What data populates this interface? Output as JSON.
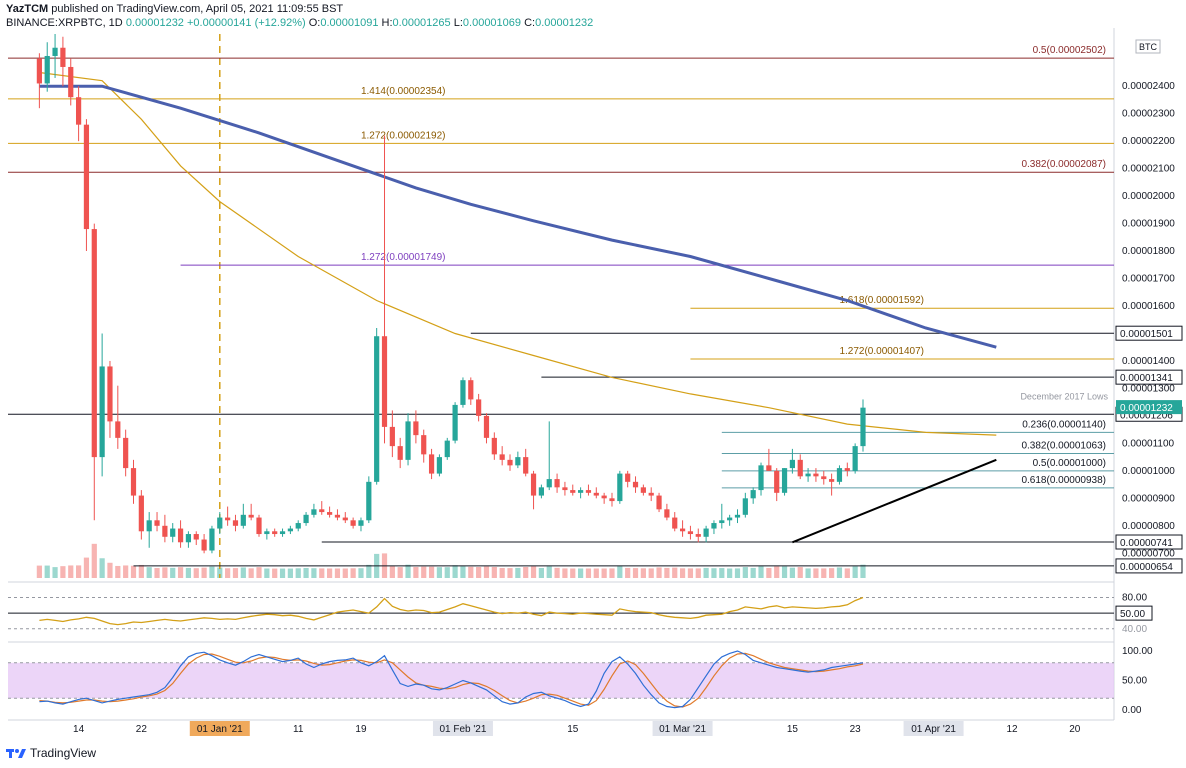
{
  "header": {
    "author": "YazTCM",
    "published_text": "published on TradingView.com, April 05, 2021 11:09:55 BST",
    "symbol": "BINANCE:XRPBTC, 1D",
    "last": "0.00001232",
    "change": "+0.00000141 (+12.92%)",
    "o_label": "O:",
    "o_value": "0.00001091",
    "h_label": "H:",
    "h_value": "0.00001265",
    "l_label": "L:",
    "l_value": "0.00001069",
    "c_label": "C:",
    "c_value": "0.00001232"
  },
  "footer": {
    "brand": "TradingView"
  },
  "colors": {
    "up": "#26a69a",
    "down": "#ef5350",
    "ma200": "#4a5fad",
    "ma100": "#d4a017",
    "fib": "#d4a017",
    "fib_red": "#8b2b2b",
    "fib_purple": "#7e3fbf",
    "teal_line": "#5c9ea6",
    "rsi": "#d4a017",
    "stoch_k": "#2f6fd6",
    "stoch_d": "#e07a2c",
    "stoch_band": "#e6c7f5"
  },
  "chart_data": {
    "type": "candlestick",
    "currency": "BTC",
    "ylim": [
      6.1e-06,
      2.59e-05
    ],
    "price_ticks": [
      "0.00002400",
      "0.00002300",
      "0.00002200",
      "0.00002100",
      "0.00002000",
      "0.00001900",
      "0.00001800",
      "0.00001700",
      "0.00001600",
      "0.00001400",
      "0.00001300",
      "0.00001100",
      "0.00001000",
      "0.00000900",
      "0.00000800",
      "0.00000700"
    ],
    "price_tick_values": [
      2.4e-05,
      2.3e-05,
      2.2e-05,
      2.1e-05,
      2e-05,
      1.9e-05,
      1.8e-05,
      1.7e-05,
      1.6e-05,
      1.4e-05,
      1.3e-05,
      1.1e-05,
      1e-05,
      9e-06,
      8e-06,
      7e-06
    ],
    "x_ticks": [
      "14",
      "22",
      "01 Jan '21",
      "11",
      "19",
      "01 Feb '21",
      "15",
      "01 Mar '21",
      "15",
      "23",
      "01 Apr '21",
      "12",
      "20"
    ],
    "x_tick_days": [
      -18,
      -10,
      0,
      10,
      18,
      31,
      45,
      59,
      73,
      81,
      91,
      101,
      109
    ],
    "highlight_x_ticks": [
      "01 Jan '21"
    ],
    "boxed_x_ticks": [
      "01 Feb '21",
      "01 Mar '21",
      "01 Apr '21"
    ],
    "candles_ohlc": [
      [
        2.5e-05,
        2.52e-05,
        2.32e-05,
        2.41e-05
      ],
      [
        2.41e-05,
        2.56e-05,
        2.38e-05,
        2.51e-05
      ],
      [
        2.51e-05,
        2.59e-05,
        2.43e-05,
        2.54e-05
      ],
      [
        2.54e-05,
        2.58e-05,
        2.4e-05,
        2.47e-05
      ],
      [
        2.47e-05,
        2.5e-05,
        2.33e-05,
        2.36e-05
      ],
      [
        2.36e-05,
        2.4e-05,
        2.2e-05,
        2.26e-05
      ],
      [
        2.26e-05,
        2.28e-05,
        1.8e-05,
        1.88e-05
      ],
      [
        1.88e-05,
        1.9e-05,
        8.2e-06,
        1.05e-05
      ],
      [
        1.05e-05,
        1.5e-05,
        9.8e-06,
        1.38e-05
      ],
      [
        1.38e-05,
        1.4e-05,
        1.12e-05,
        1.18e-05
      ],
      [
        1.18e-05,
        1.31e-05,
        1.08e-05,
        1.12e-05
      ],
      [
        1.12e-05,
        1.15e-05,
        9.8e-06,
        1.01e-05
      ],
      [
        1.01e-05,
        1.04e-05,
        8.8e-06,
        9.1e-06
      ],
      [
        9.1e-06,
        9.3e-06,
        7.5e-06,
        7.8e-06
      ],
      [
        7.8e-06,
        8.5e-06,
        7.2e-06,
        8.2e-06
      ],
      [
        8.2e-06,
        8.5e-06,
        7.8e-06,
        8e-06
      ],
      [
        8e-06,
        8.4e-06,
        7.4e-06,
        7.6e-06
      ],
      [
        7.6e-06,
        8.1e-06,
        7.4e-06,
        7.9e-06
      ],
      [
        7.9e-06,
        8.2e-06,
        7.2e-06,
        7.4e-06
      ],
      [
        7.4e-06,
        7.8e-06,
        7.2e-06,
        7.7e-06
      ],
      [
        7.7e-06,
        7.8e-06,
        7.3e-06,
        7.5e-06
      ],
      [
        7.5e-06,
        7.7e-06,
        7e-06,
        7.1e-06
      ],
      [
        7.1e-06,
        8e-06,
        7e-06,
        7.9e-06
      ],
      [
        7.9e-06,
        8.5e-06,
        7.7e-06,
        8.3e-06
      ],
      [
        8.3e-06,
        8.7e-06,
        8e-06,
        8.2e-06
      ],
      [
        8.2e-06,
        8.4e-06,
        7.8e-06,
        8e-06
      ],
      [
        8e-06,
        8.8e-06,
        7.9e-06,
        8.4e-06
      ],
      [
        8.4e-06,
        8.8e-06,
        8.2e-06,
        8.3e-06
      ],
      [
        8.3e-06,
        8.4e-06,
        7.6e-06,
        7.7e-06
      ],
      [
        7.7e-06,
        7.9e-06,
        7.5e-06,
        7.8e-06
      ],
      [
        7.8e-06,
        7.9e-06,
        7.6e-06,
        7.7e-06
      ],
      [
        7.7e-06,
        7.9e-06,
        7.6e-06,
        7.8e-06
      ],
      [
        7.8e-06,
        8e-06,
        7.7e-06,
        7.9e-06
      ],
      [
        7.9e-06,
        8.2e-06,
        7.8e-06,
        8.1e-06
      ],
      [
        8.1e-06,
        8.5e-06,
        8e-06,
        8.4e-06
      ],
      [
        8.4e-06,
        8.8e-06,
        8.3e-06,
        8.6e-06
      ],
      [
        8.6e-06,
        8.9e-06,
        8.4e-06,
        8.5e-06
      ],
      [
        8.5e-06,
        8.7e-06,
        8.3e-06,
        8.4e-06
      ],
      [
        8.4e-06,
        8.6e-06,
        8.2e-06,
        8.3e-06
      ],
      [
        8.3e-06,
        8.5e-06,
        8.1e-06,
        8.2e-06
      ],
      [
        8.2e-06,
        8.3e-06,
        7.9e-06,
        8e-06
      ],
      [
        8e-06,
        8.3e-06,
        7.8e-06,
        8.2e-06
      ],
      [
        8.2e-06,
        9.8e-06,
        8.1e-06,
        9.6e-06
      ],
      [
        9.6e-06,
        1.52e-05,
        9.5e-06,
        1.49e-05
      ],
      [
        1.49e-05,
        2.22e-05,
        1.1e-05,
        1.16e-05
      ],
      [
        1.16e-05,
        1.22e-05,
        1.05e-05,
        1.09e-05
      ],
      [
        1.09e-05,
        1.12e-05,
        1.01e-05,
        1.04e-05
      ],
      [
        1.04e-05,
        1.21e-05,
        1.02e-05,
        1.18e-05
      ],
      [
        1.18e-05,
        1.22e-05,
        1.1e-05,
        1.13e-05
      ],
      [
        1.13e-05,
        1.15e-05,
        1.03e-05,
        1.06e-05
      ],
      [
        1.06e-05,
        1.08e-05,
        9.7e-06,
        9.9e-06
      ],
      [
        9.9e-06,
        1.06e-05,
        9.8e-06,
        1.05e-05
      ],
      [
        1.05e-05,
        1.12e-05,
        1.04e-05,
        1.11e-05
      ],
      [
        1.11e-05,
        1.25e-05,
        1.1e-05,
        1.24e-05
      ],
      [
        1.24e-05,
        1.34e-05,
        1.23e-05,
        1.33e-05
      ],
      [
        1.33e-05,
        1.34e-05,
        1.24e-05,
        1.26e-05
      ],
      [
        1.26e-05,
        1.28e-05,
        1.18e-05,
        1.2e-05
      ],
      [
        1.2e-05,
        1.21e-05,
        1.1e-05,
        1.12e-05
      ],
      [
        1.12e-05,
        1.14e-05,
        1.04e-05,
        1.06e-05
      ],
      [
        1.06e-05,
        1.09e-05,
        1.02e-05,
        1.04e-05
      ],
      [
        1.04e-05,
        1.06e-05,
        1e-05,
        1.02e-05
      ],
      [
        1.02e-05,
        1.07e-05,
        1.01e-05,
        1.05e-05
      ],
      [
        1.05e-05,
        1.08e-05,
        9.8e-06,
        9.9e-06
      ],
      [
        9.9e-06,
        1e-05,
        8.6e-06,
        9.1e-06
      ],
      [
        9.1e-06,
        9.5e-06,
        9e-06,
        9.4e-06
      ],
      [
        9.4e-06,
        1.18e-05,
        9.3e-06,
        9.7e-06
      ],
      [
        9.7e-06,
        9.9e-06,
        9.2e-06,
        9.4e-06
      ],
      [
        9.4e-06,
        9.6e-06,
        9.1e-06,
        9.3e-06
      ],
      [
        9.3e-06,
        9.5e-06,
        9.1e-06,
        9.2e-06
      ],
      [
        9.2e-06,
        9.4e-06,
        9e-06,
        9.3e-06
      ],
      [
        9.3e-06,
        9.5e-06,
        9.1e-06,
        9.2e-06
      ],
      [
        9.2e-06,
        9.4e-06,
        9e-06,
        9.1e-06
      ],
      [
        9.1e-06,
        9.2e-06,
        8.8e-06,
        9e-06
      ],
      [
        9e-06,
        9.2e-06,
        8.7e-06,
        8.9e-06
      ],
      [
        8.9e-06,
        1e-05,
        8.8e-06,
        9.9e-06
      ],
      [
        9.9e-06,
        1e-05,
        9.4e-06,
        9.6e-06
      ],
      [
        9.6e-06,
        9.8e-06,
        9.2e-06,
        9.4e-06
      ],
      [
        9.4e-06,
        9.5e-06,
        9.1e-06,
        9.2e-06
      ],
      [
        9.2e-06,
        9.4e-06,
        8.9e-06,
        9.1e-06
      ],
      [
        9.1e-06,
        9.2e-06,
        8.5e-06,
        8.6e-06
      ],
      [
        8.6e-06,
        8.8e-06,
        8.2e-06,
        8.3e-06
      ],
      [
        8.3e-06,
        8.5e-06,
        7.8e-06,
        7.9e-06
      ],
      [
        7.9e-06,
        8.2e-06,
        7.6e-06,
        7.8e-06
      ],
      [
        7.8e-06,
        8e-06,
        7.5e-06,
        7.7e-06
      ],
      [
        7.7e-06,
        7.9e-06,
        7.4e-06,
        7.6e-06
      ],
      [
        7.6e-06,
        8e-06,
        7.4e-06,
        7.9e-06
      ],
      [
        7.9e-06,
        8.2e-06,
        7.7e-06,
        8.1e-06
      ],
      [
        8.1e-06,
        8.8e-06,
        7.9e-06,
        8.2e-06
      ],
      [
        8.2e-06,
        8.4e-06,
        8e-06,
        8.3e-06
      ],
      [
        8.3e-06,
        8.6e-06,
        8.1e-06,
        8.4e-06
      ],
      [
        8.4e-06,
        9.2e-06,
        8.3e-06,
        9e-06
      ],
      [
        9e-06,
        9.4e-06,
        8.8e-06,
        9.3e-06
      ],
      [
        9.3e-06,
        1.03e-05,
        9.1e-06,
        1.02e-05
      ],
      [
        1.02e-05,
        1.08e-05,
        1e-05,
        1e-05
      ],
      [
        1e-05,
        1.01e-05,
        8.9e-06,
        9.2e-06
      ],
      [
        9.2e-06,
        1.01e-05,
        9.1e-06,
        1.01e-05
      ],
      [
        1.01e-05,
        1.08e-05,
        9.9e-06,
        1.04e-05
      ],
      [
        1.04e-05,
        1.06e-05,
        9.7e-06,
        9.8e-06
      ],
      [
        9.8e-06,
        1.01e-05,
        9.6e-06,
        9.9e-06
      ],
      [
        9.9e-06,
        1.01e-05,
        9.6e-06,
        9.8e-06
      ],
      [
        9.8e-06,
        1e-05,
        9.5e-06,
        9.7e-06
      ],
      [
        9.7e-06,
        9.9e-06,
        9.1e-06,
        9.6e-06
      ],
      [
        9.6e-06,
        1.02e-05,
        9.5e-06,
        1.01e-05
      ],
      [
        1.01e-05,
        1.03e-05,
        9.8e-06,
        1e-05
      ],
      [
        1e-05,
        1.1e-05,
        9.9e-06,
        1.09e-05
      ],
      [
        1.09e-05,
        1.26e-05,
        1.07e-05,
        1.23e-05
      ]
    ],
    "first_candle_day": -23,
    "ma200": [
      [
        -23,
        2.4e-05
      ],
      [
        -15,
        2.4e-05
      ],
      [
        -5,
        2.32e-05
      ],
      [
        5,
        2.23e-05
      ],
      [
        15,
        2.13e-05
      ],
      [
        25,
        2.03e-05
      ],
      [
        32,
        1.97e-05
      ],
      [
        40,
        1.91e-05
      ],
      [
        50,
        1.84e-05
      ],
      [
        60,
        1.78e-05
      ],
      [
        70,
        1.7e-05
      ],
      [
        80,
        1.62e-05
      ],
      [
        90,
        1.52e-05
      ],
      [
        99,
        1.45e-05
      ]
    ],
    "ma100": [
      [
        -23,
        2.45e-05
      ],
      [
        -15,
        2.42e-05
      ],
      [
        -10,
        2.28e-05
      ],
      [
        -5,
        2.11e-05
      ],
      [
        0,
        1.98e-05
      ],
      [
        10,
        1.78e-05
      ],
      [
        20,
        1.62e-05
      ],
      [
        30,
        1.5e-05
      ],
      [
        40,
        1.42e-05
      ],
      [
        50,
        1.34e-05
      ],
      [
        60,
        1.28e-05
      ],
      [
        70,
        1.23e-05
      ],
      [
        80,
        1.17e-05
      ],
      [
        90,
        1.14e-05
      ],
      [
        99,
        1.13e-05
      ]
    ],
    "horizontal_levels": [
      {
        "label": "0.5(0.00002502)",
        "value": 2.502e-05,
        "kind": "fib_red"
      },
      {
        "label": "1.414(0.00002354)",
        "value": 2.354e-05,
        "kind": "fib"
      },
      {
        "label": "1.272(0.00002192)",
        "value": 2.192e-05,
        "kind": "fib"
      },
      {
        "label": "0.382(0.00002087)",
        "value": 2.087e-05,
        "kind": "fib_red"
      },
      {
        "label": "1.272(0.00001749)",
        "value": 1.749e-05,
        "kind": "fib_purple"
      },
      {
        "label": "1.618(0.00001592)",
        "value": 1.592e-05,
        "kind": "fib"
      },
      {
        "label": "1.272(0.00001407)",
        "value": 1.407e-05,
        "kind": "fib"
      },
      {
        "label": "0.236(0.00001140)",
        "value": 1.14e-05,
        "kind": "teal"
      },
      {
        "label": "0.382(0.00001063)",
        "value": 1.063e-05,
        "kind": "teal"
      },
      {
        "label": "0.5(0.00001000)",
        "value": 1e-05,
        "kind": "teal"
      },
      {
        "label": "0.618(0.00000938)",
        "value": 9.38e-06,
        "kind": "teal"
      }
    ],
    "black_levels": [
      {
        "value": 1.501e-05,
        "tag": "0.00001501"
      },
      {
        "value": 1.341e-05,
        "tag": "0.00001341"
      },
      {
        "value": 1.206e-05,
        "tag": "0.00001206"
      },
      {
        "value": 7.41e-06,
        "tag": "0.00000741"
      },
      {
        "value": 6.54e-06,
        "tag": "0.00000654"
      }
    ],
    "annotations": {
      "dec_2017_lows": "December 2017 Lows",
      "current_price_tag": "0.00001232",
      "rsi_ticks": [
        "80.00",
        "50.00",
        "40.00"
      ],
      "stoch_ticks": [
        "100.00",
        "50.00",
        "0.00"
      ]
    },
    "trendline": [
      [
        73,
        7.4e-06
      ],
      [
        99,
        1.04e-05
      ]
    ],
    "rsi_values": [
      36,
      38,
      36,
      34,
      37,
      39,
      42,
      40,
      35,
      30,
      28,
      30,
      33,
      32,
      34,
      36,
      38,
      36,
      35,
      37,
      39,
      41,
      40,
      38,
      39,
      38,
      41,
      44,
      46,
      48,
      47,
      45,
      46,
      44,
      40,
      37,
      42,
      47,
      52,
      54,
      56,
      53,
      50,
      62,
      78,
      63,
      57,
      54,
      56,
      55,
      51,
      52,
      57,
      62,
      68,
      64,
      60,
      56,
      52,
      49,
      51,
      50,
      52,
      48,
      45,
      52,
      50,
      49,
      48,
      50,
      49,
      48,
      47,
      46,
      58,
      55,
      53,
      52,
      51,
      47,
      44,
      42,
      41,
      40,
      42,
      46,
      47,
      48,
      53,
      56,
      62,
      60,
      58,
      62,
      64,
      60,
      62,
      61,
      60,
      59,
      60,
      62,
      63,
      66,
      74,
      80
    ],
    "stoch_k": [
      14,
      15,
      12,
      10,
      14,
      18,
      20,
      16,
      12,
      15,
      18,
      20,
      22,
      24,
      26,
      30,
      38,
      55,
      75,
      90,
      96,
      98,
      92,
      85,
      80,
      76,
      82,
      90,
      94,
      90,
      86,
      82,
      84,
      88,
      78,
      72,
      78,
      82,
      84,
      85,
      88,
      80,
      75,
      82,
      92,
      68,
      45,
      40,
      44,
      42,
      36,
      34,
      38,
      44,
      50,
      46,
      40,
      34,
      24,
      14,
      10,
      12,
      22,
      28,
      30,
      24,
      20,
      16,
      10,
      6,
      10,
      32,
      62,
      82,
      90,
      78,
      62,
      42,
      26,
      12,
      6,
      4,
      6,
      18,
      38,
      58,
      78,
      90,
      96,
      100,
      94,
      84,
      80,
      76,
      72,
      70,
      68,
      66,
      64,
      66,
      68,
      72,
      74,
      76,
      78,
      80
    ],
    "stoch_d": [
      16,
      15,
      13,
      12,
      13,
      15,
      17,
      17,
      15,
      14,
      15,
      17,
      19,
      22,
      24,
      27,
      33,
      45,
      62,
      78,
      88,
      94,
      95,
      91,
      86,
      81,
      80,
      83,
      88,
      90,
      89,
      86,
      84,
      85,
      83,
      79,
      76,
      77,
      80,
      83,
      85,
      84,
      81,
      80,
      85,
      80,
      68,
      56,
      46,
      42,
      40,
      37,
      36,
      38,
      43,
      46,
      45,
      40,
      33,
      24,
      16,
      12,
      15,
      20,
      26,
      27,
      25,
      20,
      15,
      10,
      8,
      16,
      35,
      58,
      78,
      83,
      77,
      62,
      45,
      28,
      15,
      7,
      5,
      10,
      20,
      38,
      58,
      75,
      88,
      95,
      96,
      92,
      86,
      80,
      76,
      72,
      70,
      68,
      66,
      65,
      66,
      68,
      70,
      73,
      75,
      78
    ]
  }
}
